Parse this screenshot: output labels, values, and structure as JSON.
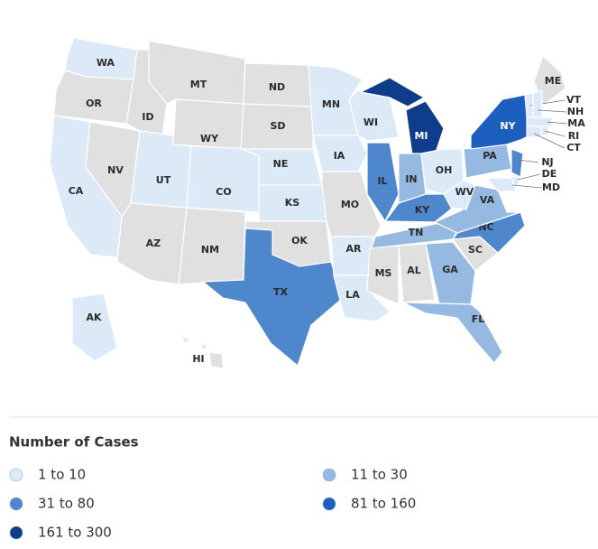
{
  "map": {
    "no_data_color": "#e0e0e0",
    "states": [
      {
        "label": "WA",
        "bin": 0
      },
      {
        "label": "OR",
        "bin": null
      },
      {
        "label": "CA",
        "bin": 0
      },
      {
        "label": "NV",
        "bin": null
      },
      {
        "label": "ID",
        "bin": null
      },
      {
        "label": "MT",
        "bin": null
      },
      {
        "label": "WY",
        "bin": null
      },
      {
        "label": "UT",
        "bin": 0
      },
      {
        "label": "CO",
        "bin": 0
      },
      {
        "label": "AZ",
        "bin": null
      },
      {
        "label": "NM",
        "bin": null
      },
      {
        "label": "ND",
        "bin": null
      },
      {
        "label": "SD",
        "bin": null
      },
      {
        "label": "NE",
        "bin": 0
      },
      {
        "label": "KS",
        "bin": 0
      },
      {
        "label": "OK",
        "bin": null
      },
      {
        "label": "TX",
        "bin": 2
      },
      {
        "label": "MN",
        "bin": 0
      },
      {
        "label": "IA",
        "bin": 0
      },
      {
        "label": "MO",
        "bin": null
      },
      {
        "label": "AR",
        "bin": 0
      },
      {
        "label": "LA",
        "bin": 0
      },
      {
        "label": "WI",
        "bin": 0
      },
      {
        "label": "IL",
        "bin": 2
      },
      {
        "label": "MI",
        "bin": 4
      },
      {
        "label": "IN",
        "bin": 1
      },
      {
        "label": "OH",
        "bin": 0
      },
      {
        "label": "KY",
        "bin": 2
      },
      {
        "label": "TN",
        "bin": 1
      },
      {
        "label": "MS",
        "bin": null
      },
      {
        "label": "AL",
        "bin": null
      },
      {
        "label": "GA",
        "bin": 1
      },
      {
        "label": "FL",
        "bin": 1
      },
      {
        "label": "SC",
        "bin": null
      },
      {
        "label": "NC",
        "bin": 2
      },
      {
        "label": "VA",
        "bin": 1
      },
      {
        "label": "WV",
        "bin": 0
      },
      {
        "label": "PA",
        "bin": 1
      },
      {
        "label": "NY",
        "bin": 3
      },
      {
        "label": "NJ",
        "bin": 2
      },
      {
        "label": "DE",
        "bin": 0
      },
      {
        "label": "MD",
        "bin": 0
      },
      {
        "label": "ME",
        "bin": null
      },
      {
        "label": "VT",
        "bin": 0
      },
      {
        "label": "NH",
        "bin": 0
      },
      {
        "label": "MA",
        "bin": 0
      },
      {
        "label": "RI",
        "bin": 0
      },
      {
        "label": "CT",
        "bin": 0
      },
      {
        "label": "AK",
        "bin": 0
      },
      {
        "label": "HI",
        "bin": null
      }
    ]
  },
  "legend": {
    "title": "Number of Cases",
    "items": [
      {
        "label": "1 to 10",
        "color": "#dce9f7"
      },
      {
        "label": "11 to 30",
        "color": "#95b9e1"
      },
      {
        "label": "31 to 80",
        "color": "#4f87cc"
      },
      {
        "label": "81 to 160",
        "color": "#1d5fbe"
      },
      {
        "label": "161 to 300",
        "color": "#0f3d8a"
      }
    ]
  }
}
